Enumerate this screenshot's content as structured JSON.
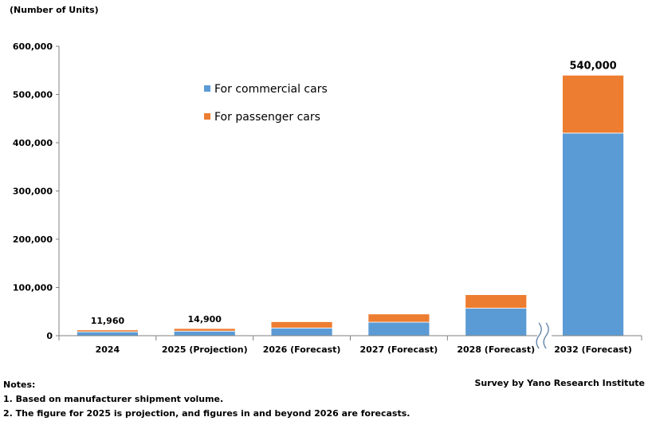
{
  "chart_data": {
    "type": "bar",
    "stacked": true,
    "ylabel": "(Number of Units)",
    "ylim": [
      0,
      600000
    ],
    "yticks": [
      "0",
      "100,000",
      "200,000",
      "300,000",
      "400,000",
      "500,000",
      "600,000"
    ],
    "ytick_values": [
      0,
      100000,
      200000,
      300000,
      400000,
      500000,
      600000
    ],
    "categories": [
      "2024",
      "2025 (Projection)",
      "2026 (Forecast)",
      "2027 (Forecast)",
      "2028 (Forecast)",
      "2032 (Forecast)"
    ],
    "series": [
      {
        "name": "For commercial cars",
        "color": "#5b9bd5",
        "values": [
          8000,
          9500,
          16000,
          28000,
          57000,
          420000
        ]
      },
      {
        "name": "For passenger cars",
        "color": "#ed7d31",
        "values": [
          3960,
          5400,
          13000,
          17000,
          28000,
          120000
        ]
      }
    ],
    "total_labels": [
      "11,960",
      "14,900",
      "",
      "",
      "",
      "540,000"
    ],
    "legend_position": "top-center",
    "axis_break_between": [
      "2028 (Forecast)",
      "2032 (Forecast)"
    ]
  },
  "notes": {
    "heading": "Notes:",
    "line1": "1. Based on manufacturer shipment volume.",
    "line2": "2. The figure for 2025 is projection, and figures in and beyond 2026 are forecasts."
  },
  "source": "Survey by Yano Research Institute"
}
